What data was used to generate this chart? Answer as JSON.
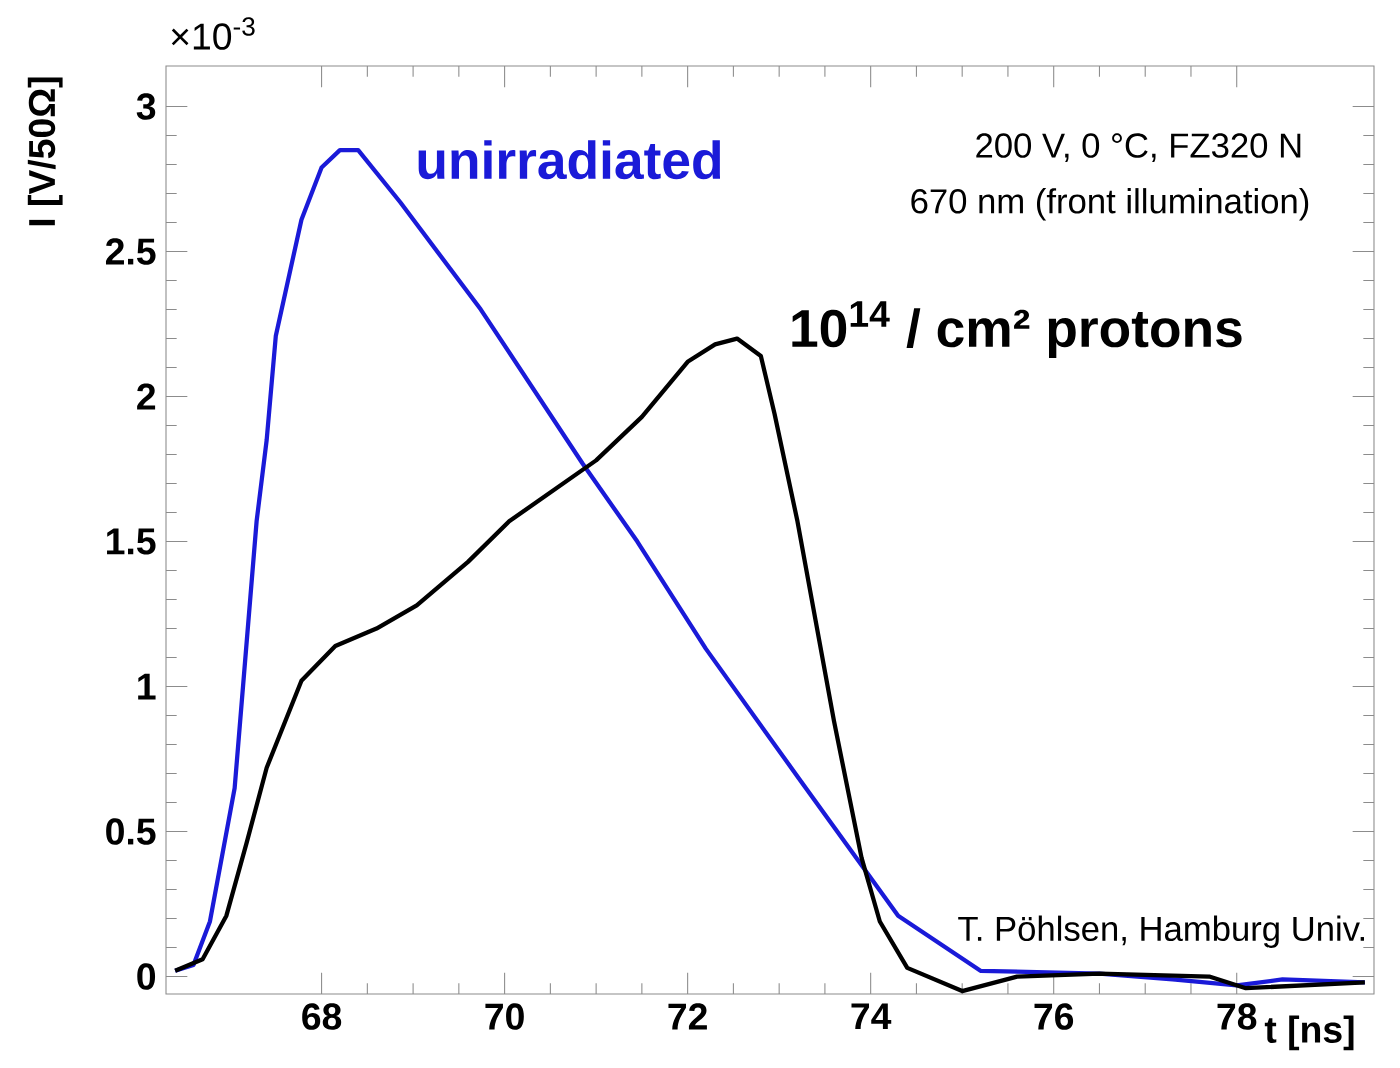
{
  "chart_data": {
    "type": "line",
    "xlabel": "t [ns]",
    "ylabel": "I [V/50Ω]",
    "xlim": [
      66.3,
      79.5
    ],
    "ylim": [
      -0.06,
      3.14
    ],
    "xticks": [
      68,
      70,
      72,
      74,
      76,
      78
    ],
    "yticks": [
      0,
      0.5,
      1,
      1.5,
      2,
      2.5,
      3
    ],
    "annotations": [
      "×10$^{-3}$",
      "200 V, 0 °C, FZ320 N",
      "670 nm (front illumination)",
      "T. Pöhlsen, Hamburg Univ."
    ],
    "series": [
      {
        "name": "unirradiated",
        "color": "#1a1ad8",
        "x": [
          66.4,
          66.6,
          66.78,
          67.05,
          67.29,
          67.4,
          67.5,
          67.78,
          68.0,
          68.2,
          68.4,
          68.86,
          69.74,
          70.85,
          71.45,
          72.2,
          73.2,
          74.3,
          75.2,
          76.5,
          77.3,
          78.0,
          78.5,
          79.4
        ],
        "values": [
          0.02,
          0.04,
          0.19,
          0.65,
          1.57,
          1.85,
          2.21,
          2.61,
          2.79,
          2.85,
          2.85,
          2.67,
          2.3,
          1.77,
          1.5,
          1.13,
          0.69,
          0.21,
          0.02,
          0.01,
          -0.01,
          -0.03,
          -0.01,
          -0.02
        ]
      },
      {
        "name": "10$^{14}$ / cm² protons",
        "color": "#000000",
        "x": [
          66.4,
          66.7,
          66.96,
          67.18,
          67.4,
          67.78,
          68.15,
          68.6,
          69.04,
          69.6,
          70.05,
          71.0,
          71.5,
          72.0,
          72.3,
          72.54,
          72.8,
          72.95,
          73.2,
          73.6,
          73.9,
          74.1,
          74.4,
          75.0,
          75.6,
          76.5,
          77.7,
          78.1,
          79.4
        ],
        "values": [
          0.02,
          0.06,
          0.21,
          0.46,
          0.72,
          1.02,
          1.14,
          1.2,
          1.28,
          1.43,
          1.57,
          1.78,
          1.93,
          2.12,
          2.18,
          2.2,
          2.14,
          1.94,
          1.57,
          0.88,
          0.41,
          0.19,
          0.03,
          -0.05,
          0.0,
          0.01,
          0.0,
          -0.04,
          -0.02
        ]
      }
    ]
  }
}
